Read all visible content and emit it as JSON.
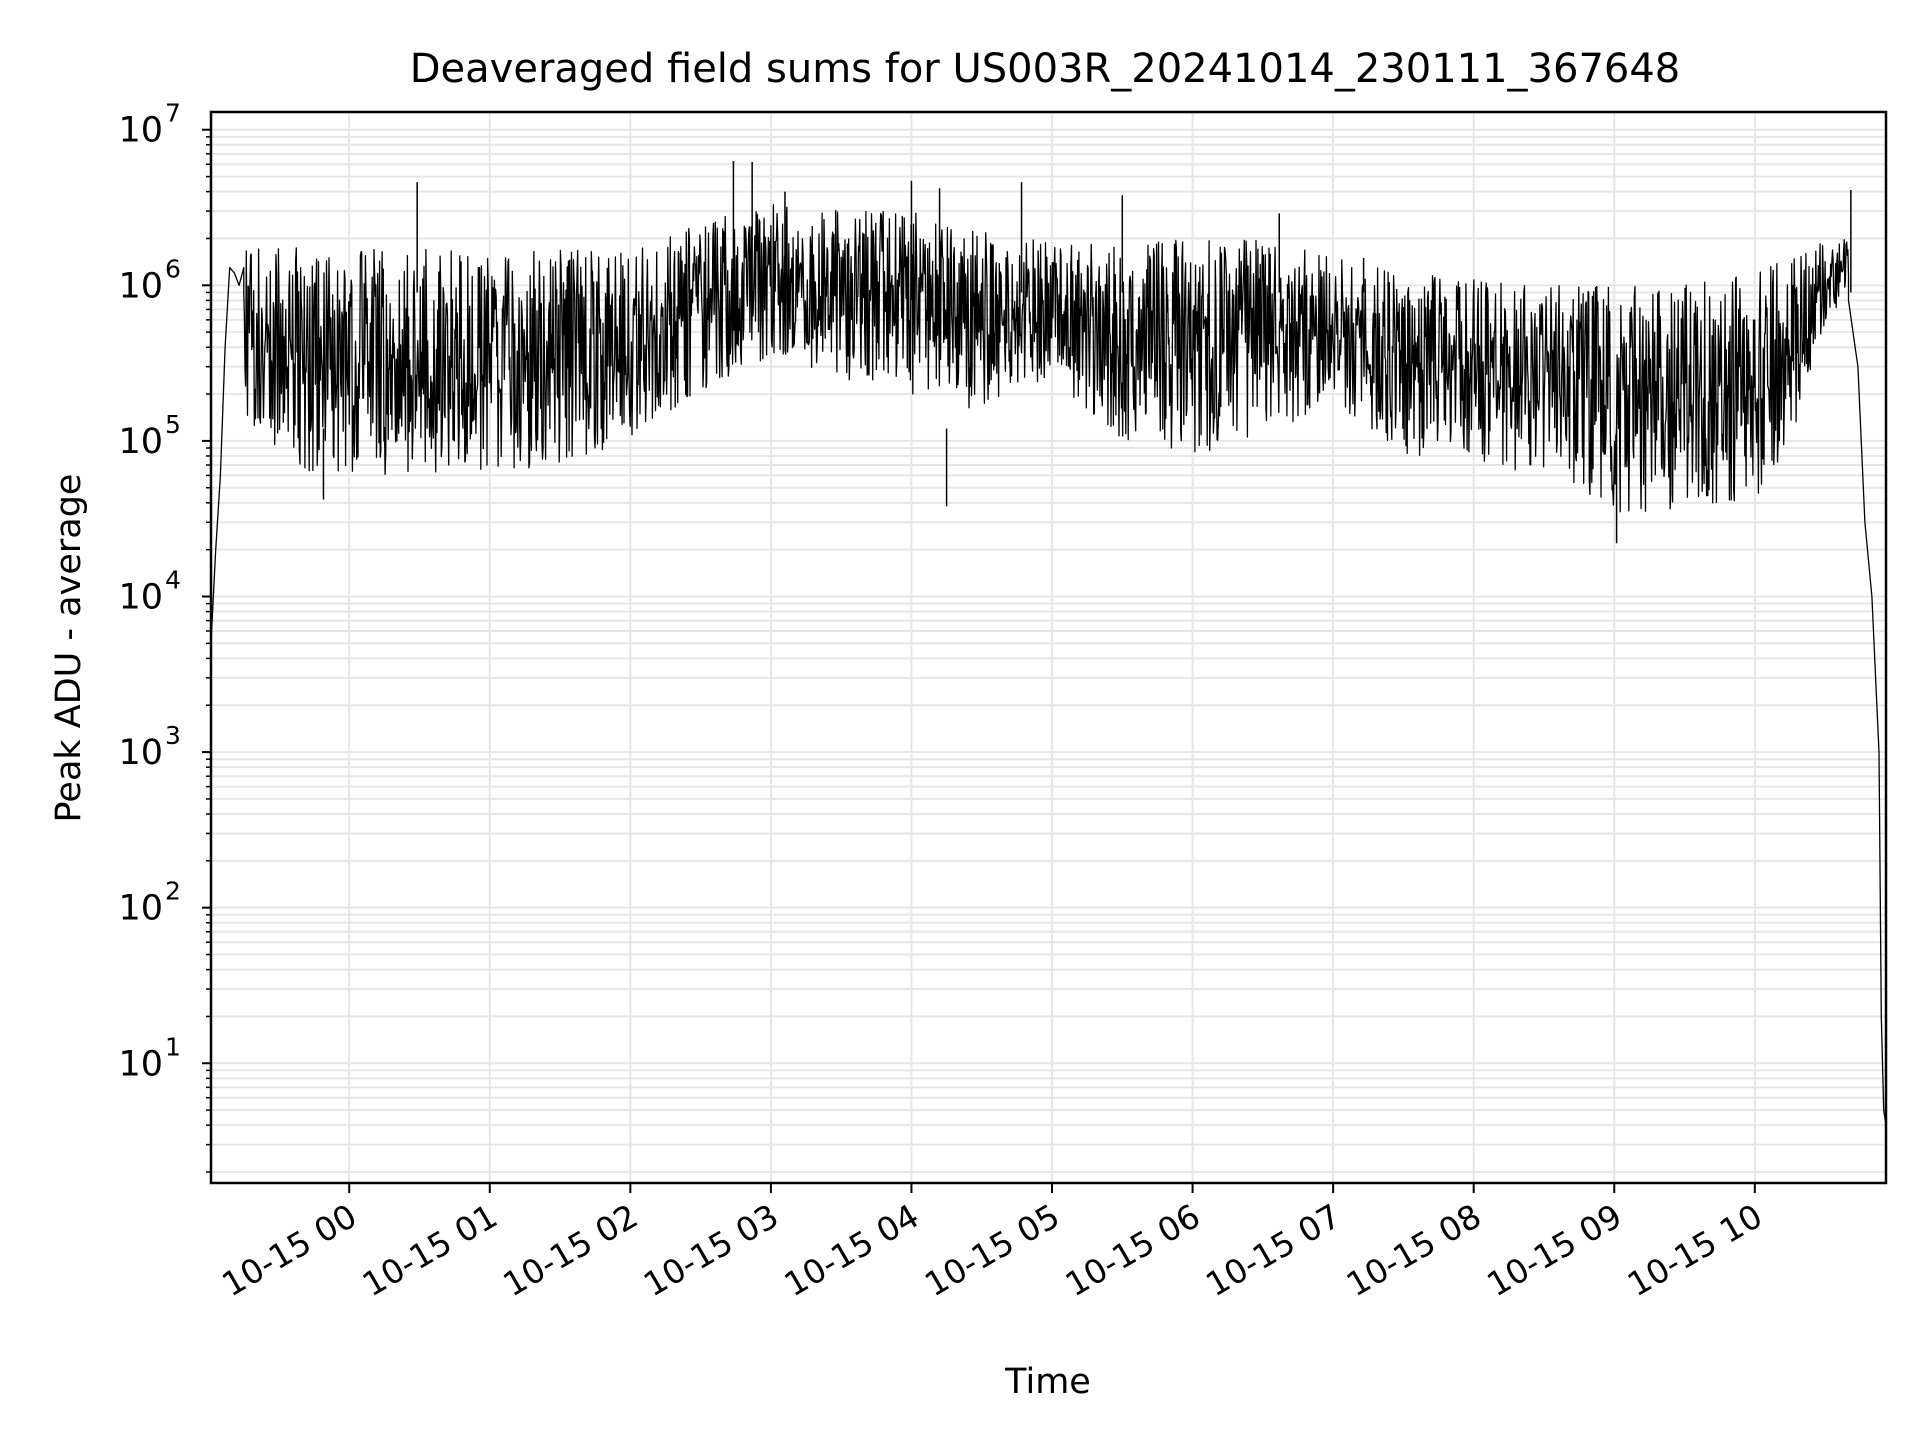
{
  "chart_data": {
    "type": "line",
    "title": "Deaveraged field sums for US003R_20241014_230111_367648",
    "xlabel": "Time",
    "ylabel": "Peak ADU - average",
    "yscale": "log",
    "ylim": [
      1.7,
      13000000
    ],
    "xlim": [
      "10-14 23:01",
      "10-15 10:56"
    ],
    "grid": true,
    "line_color": "#000000",
    "grid_color": "#e6e6e6",
    "x_ticks": [
      {
        "label": "10-15 00",
        "t": 0
      },
      {
        "label": "10-15 01",
        "t": 1
      },
      {
        "label": "10-15 02",
        "t": 2
      },
      {
        "label": "10-15 03",
        "t": 3
      },
      {
        "label": "10-15 04",
        "t": 4
      },
      {
        "label": "10-15 05",
        "t": 5
      },
      {
        "label": "10-15 06",
        "t": 6
      },
      {
        "label": "10-15 07",
        "t": 7
      },
      {
        "label": "10-15 08",
        "t": 8
      },
      {
        "label": "10-15 09",
        "t": 9
      },
      {
        "label": "10-15 10",
        "t": 10
      }
    ],
    "y_ticks": [
      {
        "base": "10",
        "exp": "1",
        "value": 10
      },
      {
        "base": "10",
        "exp": "2",
        "value": 100
      },
      {
        "base": "10",
        "exp": "3",
        "value": 1000
      },
      {
        "base": "10",
        "exp": "4",
        "value": 10000
      },
      {
        "base": "10",
        "exp": "5",
        "value": 100000
      },
      {
        "base": "10",
        "exp": "6",
        "value": 1000000
      },
      {
        "base": "10",
        "exp": "7",
        "value": 10000000
      }
    ],
    "series": [
      {
        "x": [
          "10-14 23:01",
          "10-14 23:03",
          "10-14 23:05",
          "10-14 23:07",
          "10-14 23:09",
          "10-14 23:11",
          "10-14 23:13",
          "10-14 23:15",
          "10-15 09:55",
          "10-15 10:05",
          "10-15 10:15",
          "10-15 10:25",
          "10-15 10:35",
          "10-15 10:40",
          "10-15 10:44",
          "10-15 10:47",
          "10-15 10:50",
          "10-15 10:53",
          "10-15 10:54",
          "10-15 10:55",
          "10-15 10:56"
        ],
        "y": [
          5000,
          20000,
          60000,
          400000,
          1300000,
          1200000,
          1000000,
          1300000,
          300000,
          600000,
          1000000,
          1500000,
          1800000,
          800000,
          300000,
          30000,
          10000,
          1000,
          20,
          5,
          4
        ],
        "band": {
          "x": [
            "10-14 23:15",
            "10-14 23:30",
            "10-14 23:45",
            "10-15 00:00",
            "10-15 00:30",
            "10-15 01:00",
            "10-15 01:30",
            "10-15 02:00",
            "10-15 02:30",
            "10-15 03:00",
            "10-15 03:30",
            "10-15 04:00",
            "10-15 04:30",
            "10-15 05:00",
            "10-15 05:30",
            "10-15 06:00",
            "10-15 06:30",
            "10-15 07:00",
            "10-15 07:30",
            "10-15 08:00",
            "10-15 08:30",
            "10-15 09:00",
            "10-15 09:30",
            "10-15 10:00",
            "10-15 10:15",
            "10-15 10:30",
            "10-15 10:40"
          ],
          "low": [
            150000,
            80000,
            60000,
            60000,
            60000,
            60000,
            70000,
            100000,
            200000,
            350000,
            250000,
            200000,
            150000,
            250000,
            100000,
            80000,
            100000,
            180000,
            80000,
            70000,
            60000,
            35000,
            35000,
            40000,
            100000,
            500000,
            900000
          ],
          "high": [
            1700000,
            1800000,
            1800000,
            1700000,
            1700000,
            1700000,
            1700000,
            1800000,
            2500000,
            3500000,
            3000000,
            3000000,
            2200000,
            2000000,
            1800000,
            2000000,
            2000000,
            1500000,
            1200000,
            1100000,
            1000000,
            1000000,
            1000000,
            1200000,
            1500000,
            2000000,
            2000000
          ]
        },
        "spikes": [
          {
            "x": "10-15 00:29",
            "y": 4600000
          },
          {
            "x": "10-15 02:44",
            "y": 6300000
          },
          {
            "x": "10-15 02:52",
            "y": 6200000
          },
          {
            "x": "10-15 03:06",
            "y": 4000000
          },
          {
            "x": "10-15 04:00",
            "y": 4700000
          },
          {
            "x": "10-15 04:12",
            "y": 4200000
          },
          {
            "x": "10-15 04:47",
            "y": 4600000
          },
          {
            "x": "10-15 05:30",
            "y": 3800000
          },
          {
            "x": "10-15 06:37",
            "y": 2900000
          },
          {
            "x": "10-15 07:13",
            "y": 1500000
          },
          {
            "x": "10-15 10:41",
            "y": 4100000
          },
          {
            "x": "10-15 04:15",
            "y": 38000
          },
          {
            "x": "10-15 09:01",
            "y": 22000
          },
          {
            "x": "10-14 23:49",
            "y": 42000
          }
        ]
      }
    ]
  }
}
